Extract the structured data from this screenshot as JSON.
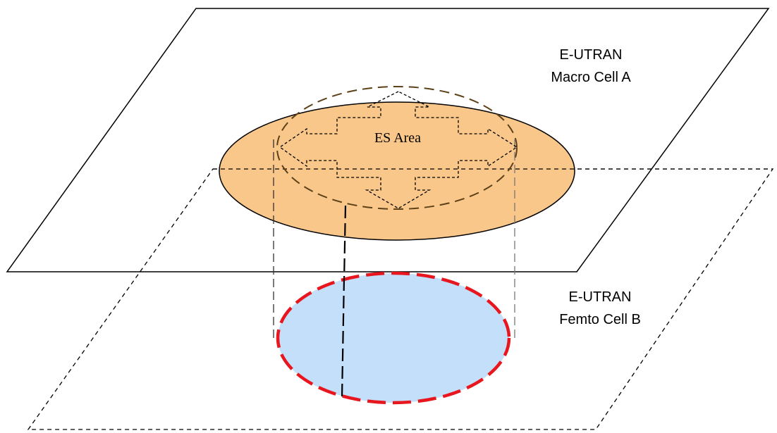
{
  "labels": {
    "macro_line1": "E-UTRAN",
    "macro_line2": "Macro Cell A",
    "femto_line1": "E-UTRAN",
    "femto_line2": "Femto Cell B",
    "es_area": "ES Area"
  },
  "colors": {
    "macro_fill": "#F9C78A",
    "femto_fill": "#C3DFFA",
    "femto_border": "#E8161E",
    "inner_dash": "#5C4018",
    "stroke": "#000000"
  }
}
